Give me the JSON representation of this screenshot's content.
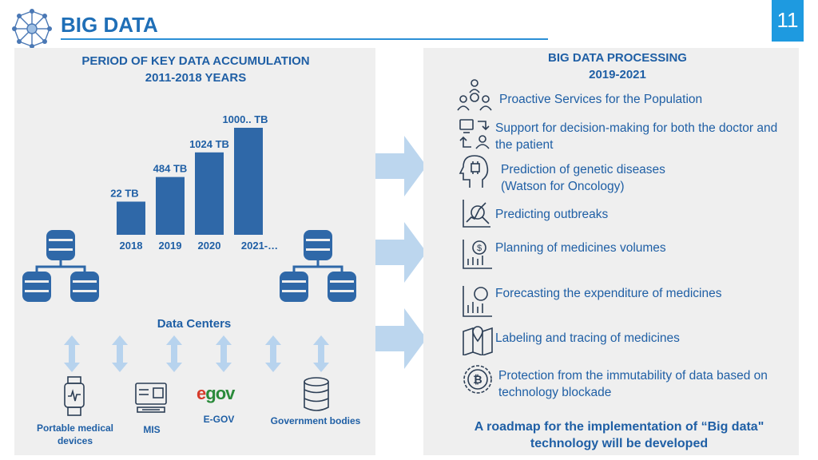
{
  "page": {
    "title": "BIG DATA",
    "page_number": "11"
  },
  "left": {
    "heading_line1": "PERIOD OF KEY DATA ACCUMULATION",
    "heading_line2": "2011-2018 YEARS",
    "data_centers_label": "Data Centers",
    "sources": {
      "portable": "Portable medical devices",
      "mis": "MIS",
      "egov_logo": "e-gov",
      "egov": "E-GOV",
      "government": "Government bodies"
    }
  },
  "chart_data": {
    "type": "bar",
    "categories": [
      "2018",
      "2019",
      "2020",
      "2021-…"
    ],
    "values": [
      22,
      484,
      1024,
      1000
    ],
    "value_labels": [
      "22 TB",
      "484 TB",
      "1024 TB",
      "1000.. TB"
    ],
    "relative_heights": [
      0.31,
      0.54,
      0.77,
      1.0
    ]
  },
  "right": {
    "heading_line1": "BIG DATA PROCESSING",
    "heading_line2": "2019-2021",
    "items": [
      {
        "icon": "people-gear-icon",
        "text": "Proactive Services for the Population"
      },
      {
        "icon": "decision-support-icon",
        "text": "Support for decision-making for both the doctor and the patient"
      },
      {
        "icon": "genetic-head-icon",
        "text": "Prediction of genetic diseases (Watson for Oncology)"
      },
      {
        "icon": "outbreak-chart-icon",
        "text": "Predicting outbreaks"
      },
      {
        "icon": "dollar-chart-icon",
        "text": "Planning of medicines volumes"
      },
      {
        "icon": "forecast-chart-icon",
        "text": "Forecasting the expenditure of medicines"
      },
      {
        "icon": "map-pin-icon",
        "text": "Labeling and tracing of medicines"
      },
      {
        "icon": "bitcoin-icon",
        "text": "Protection from the immutability of data based on technology blockade"
      }
    ],
    "roadmap": "A roadmap for the implementation of “Big data\" technology will be developed"
  },
  "colors": {
    "accent": "#1f6fb7",
    "bar": "#2f68a8",
    "arrow": "#bcd6ee",
    "panel": "#efefef"
  }
}
